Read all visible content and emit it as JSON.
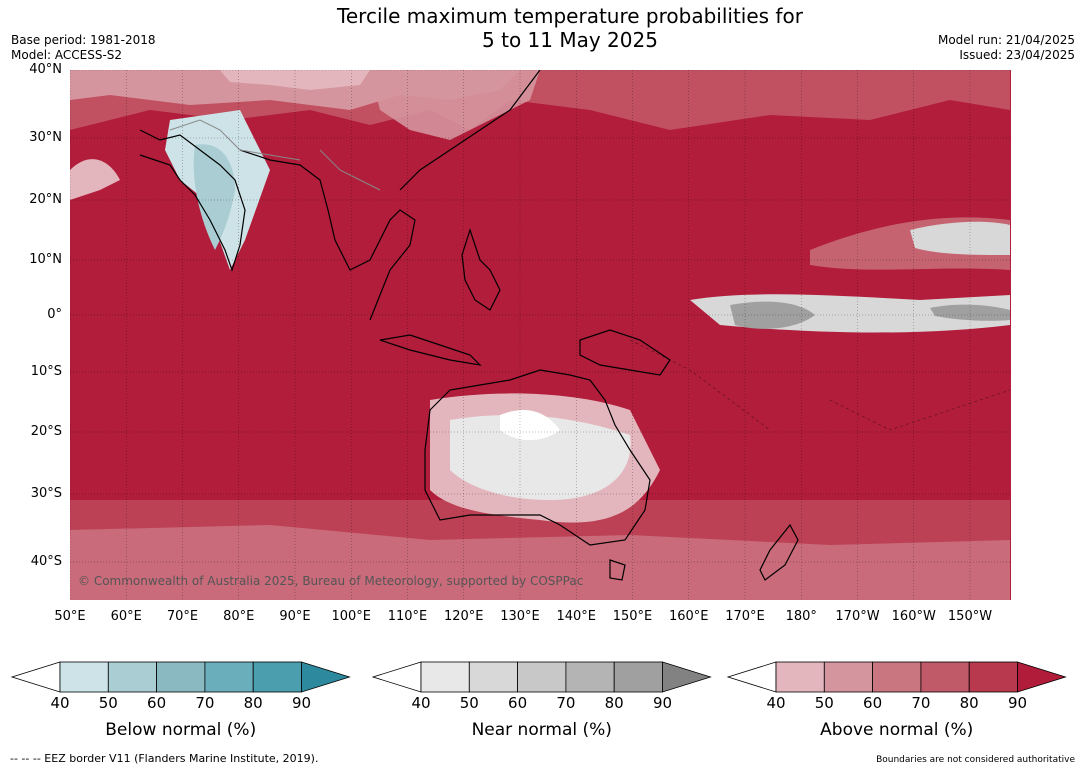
{
  "title_line1": "Tercile maximum temperature probabilities for",
  "title_line2": "5 to 11 May 2025",
  "base_period": "Base period: 1981-2018",
  "model": "Model: ACCESS-S2",
  "model_run": "Model run: 21/04/2025",
  "issued": "Issued: 23/04/2025",
  "copyright": "© Commonwealth of Australia 2025, Bureau of Meteorology, supported by COSPPac",
  "lat_labels": [
    "40°N",
    "30°N",
    "20°N",
    "10°N",
    "0°",
    "10°S",
    "20°S",
    "30°S",
    "40°S"
  ],
  "lon_labels": [
    "50°E",
    "60°E",
    "70°E",
    "80°E",
    "90°E",
    "100°E",
    "110°E",
    "120°E",
    "130°E",
    "140°E",
    "150°E",
    "160°E",
    "170°E",
    "180°",
    "170°W",
    "160°W",
    "150°W"
  ],
  "colorbars": [
    {
      "title": "Below normal (%)",
      "ticks": [
        "40",
        "50",
        "60",
        "70",
        "80",
        "90"
      ],
      "colors": [
        "#cde3e8",
        "#a9cdd3",
        "#8ab9c2",
        "#6baebb",
        "#4a9eae",
        "#2d8a9e"
      ]
    },
    {
      "title": "Near normal (%)",
      "ticks": [
        "40",
        "50",
        "60",
        "70",
        "80",
        "90"
      ],
      "colors": [
        "#e8e8e8",
        "#d8d8d8",
        "#c8c8c8",
        "#b4b4b4",
        "#a0a0a0",
        "#828282"
      ]
    },
    {
      "title": "Above normal (%)",
      "ticks": [
        "40",
        "50",
        "60",
        "70",
        "80",
        "90"
      ],
      "colors": [
        "#e3b6bd",
        "#d5959f",
        "#ca7680",
        "#c05a68",
        "#b8384d",
        "#b01c3a"
      ]
    }
  ],
  "footer_left": "--  --  -- EEZ border V11 (Flanders Marine Institute, 2019).",
  "footer_right": "Boundaries are not considered authoritative"
}
